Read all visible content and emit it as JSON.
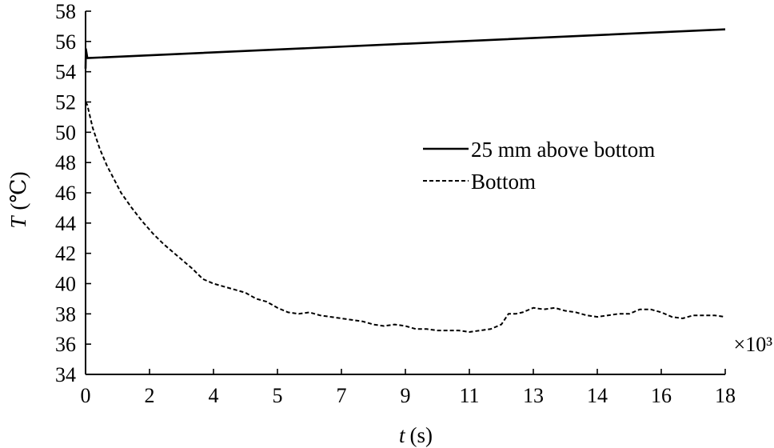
{
  "chart_data": {
    "type": "line",
    "ylabel_var": "T",
    "ylabel_unit": "(℃)",
    "xlabel_var": "t",
    "xlabel_unit": "(s)",
    "x_multiplier": "×10³",
    "xlim": [
      0,
      18
    ],
    "ylim": [
      34,
      58
    ],
    "x_ticks": [
      {
        "value": 0,
        "label": "0"
      },
      {
        "value": 1.8,
        "label": "2"
      },
      {
        "value": 3.6,
        "label": "4"
      },
      {
        "value": 5.4,
        "label": "5"
      },
      {
        "value": 7.2,
        "label": "7"
      },
      {
        "value": 9.0,
        "label": "9"
      },
      {
        "value": 10.8,
        "label": "11"
      },
      {
        "value": 12.6,
        "label": "13"
      },
      {
        "value": 14.4,
        "label": "14"
      },
      {
        "value": 16.2,
        "label": "16"
      },
      {
        "value": 18.0,
        "label": "18"
      }
    ],
    "y_ticks": [
      34,
      36,
      38,
      40,
      42,
      44,
      46,
      48,
      50,
      52,
      54,
      56,
      58
    ],
    "grid": false,
    "legend_position": "right",
    "series": [
      {
        "name": "25 mm above bottom",
        "style": "solid",
        "color": "#000000",
        "x": [
          0,
          0.01,
          0.05,
          18
        ],
        "y": [
          54.2,
          55.5,
          54.9,
          56.8
        ]
      },
      {
        "name": "Bottom",
        "style": "dashed",
        "color": "#000000",
        "x": [
          0,
          0.05,
          0.2,
          0.4,
          0.6,
          0.8,
          1.0,
          1.3,
          1.6,
          1.9,
          2.2,
          2.6,
          3.0,
          3.3,
          3.6,
          3.9,
          4.2,
          4.5,
          4.8,
          5.1,
          5.4,
          5.7,
          6.0,
          6.3,
          6.6,
          6.9,
          7.2,
          7.5,
          7.8,
          8.1,
          8.4,
          8.7,
          9.0,
          9.3,
          9.6,
          9.9,
          10.2,
          10.5,
          10.8,
          11.1,
          11.4,
          11.7,
          11.9,
          12.1,
          12.3,
          12.6,
          12.9,
          13.2,
          13.5,
          13.8,
          14.1,
          14.4,
          14.7,
          15.0,
          15.3,
          15.6,
          15.9,
          16.2,
          16.5,
          16.8,
          17.1,
          17.4,
          17.7,
          18.0
        ],
        "y": [
          52.0,
          51.8,
          50.3,
          48.9,
          47.8,
          46.9,
          46.0,
          45.0,
          44.1,
          43.3,
          42.6,
          41.8,
          41.0,
          40.3,
          40.0,
          39.8,
          39.6,
          39.4,
          39.0,
          38.8,
          38.4,
          38.1,
          38.0,
          38.1,
          37.9,
          37.8,
          37.7,
          37.6,
          37.5,
          37.3,
          37.2,
          37.3,
          37.2,
          37.0,
          37.0,
          36.9,
          36.9,
          36.9,
          36.8,
          36.9,
          37.0,
          37.3,
          38.0,
          38.0,
          38.1,
          38.4,
          38.3,
          38.4,
          38.2,
          38.1,
          37.9,
          37.8,
          37.9,
          38.0,
          38.0,
          38.3,
          38.3,
          38.1,
          37.8,
          37.7,
          37.9,
          37.9,
          37.9,
          37.8
        ]
      }
    ]
  }
}
